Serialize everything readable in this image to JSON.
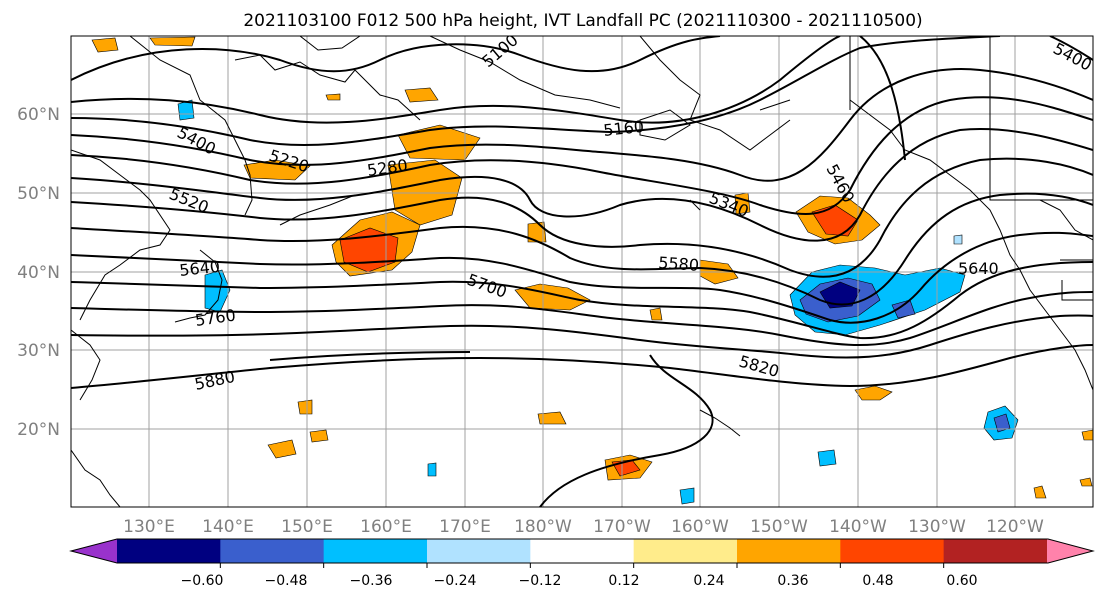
{
  "title": "2021103100 F012 500 hPa height, IVT Landfall PC (2021110300 - 2021110500)",
  "lat_labels": [
    "60°N",
    "50°N",
    "40°N",
    "30°N",
    "20°N"
  ],
  "lon_labels": [
    "130°E",
    "140°E",
    "150°E",
    "160°E",
    "170°E",
    "180°W",
    "170°W",
    "160°W",
    "150°W",
    "140°W",
    "130°W",
    "120°W"
  ],
  "contour_labels": [
    "5100",
    "5400",
    "5220",
    "5280",
    "5160",
    "5520",
    "5640",
    "5760",
    "5880",
    "5700",
    "5580",
    "5340",
    "5460",
    "5640",
    "5820",
    "5400"
  ],
  "colorbar": {
    "tick_labels": [
      "−0.60",
      "−0.48",
      "−0.36",
      "−0.24",
      "−0.12",
      "0.12",
      "0.24",
      "0.36",
      "0.48",
      "0.60"
    ],
    "colors": [
      "#9932cc",
      "#000080",
      "#3a5fcd",
      "#00bfff",
      "#b0e2ff",
      "#ffffff",
      "#ffec8b",
      "#ffa500",
      "#ff4500",
      "#b22222",
      "#ff82ab"
    ]
  }
}
